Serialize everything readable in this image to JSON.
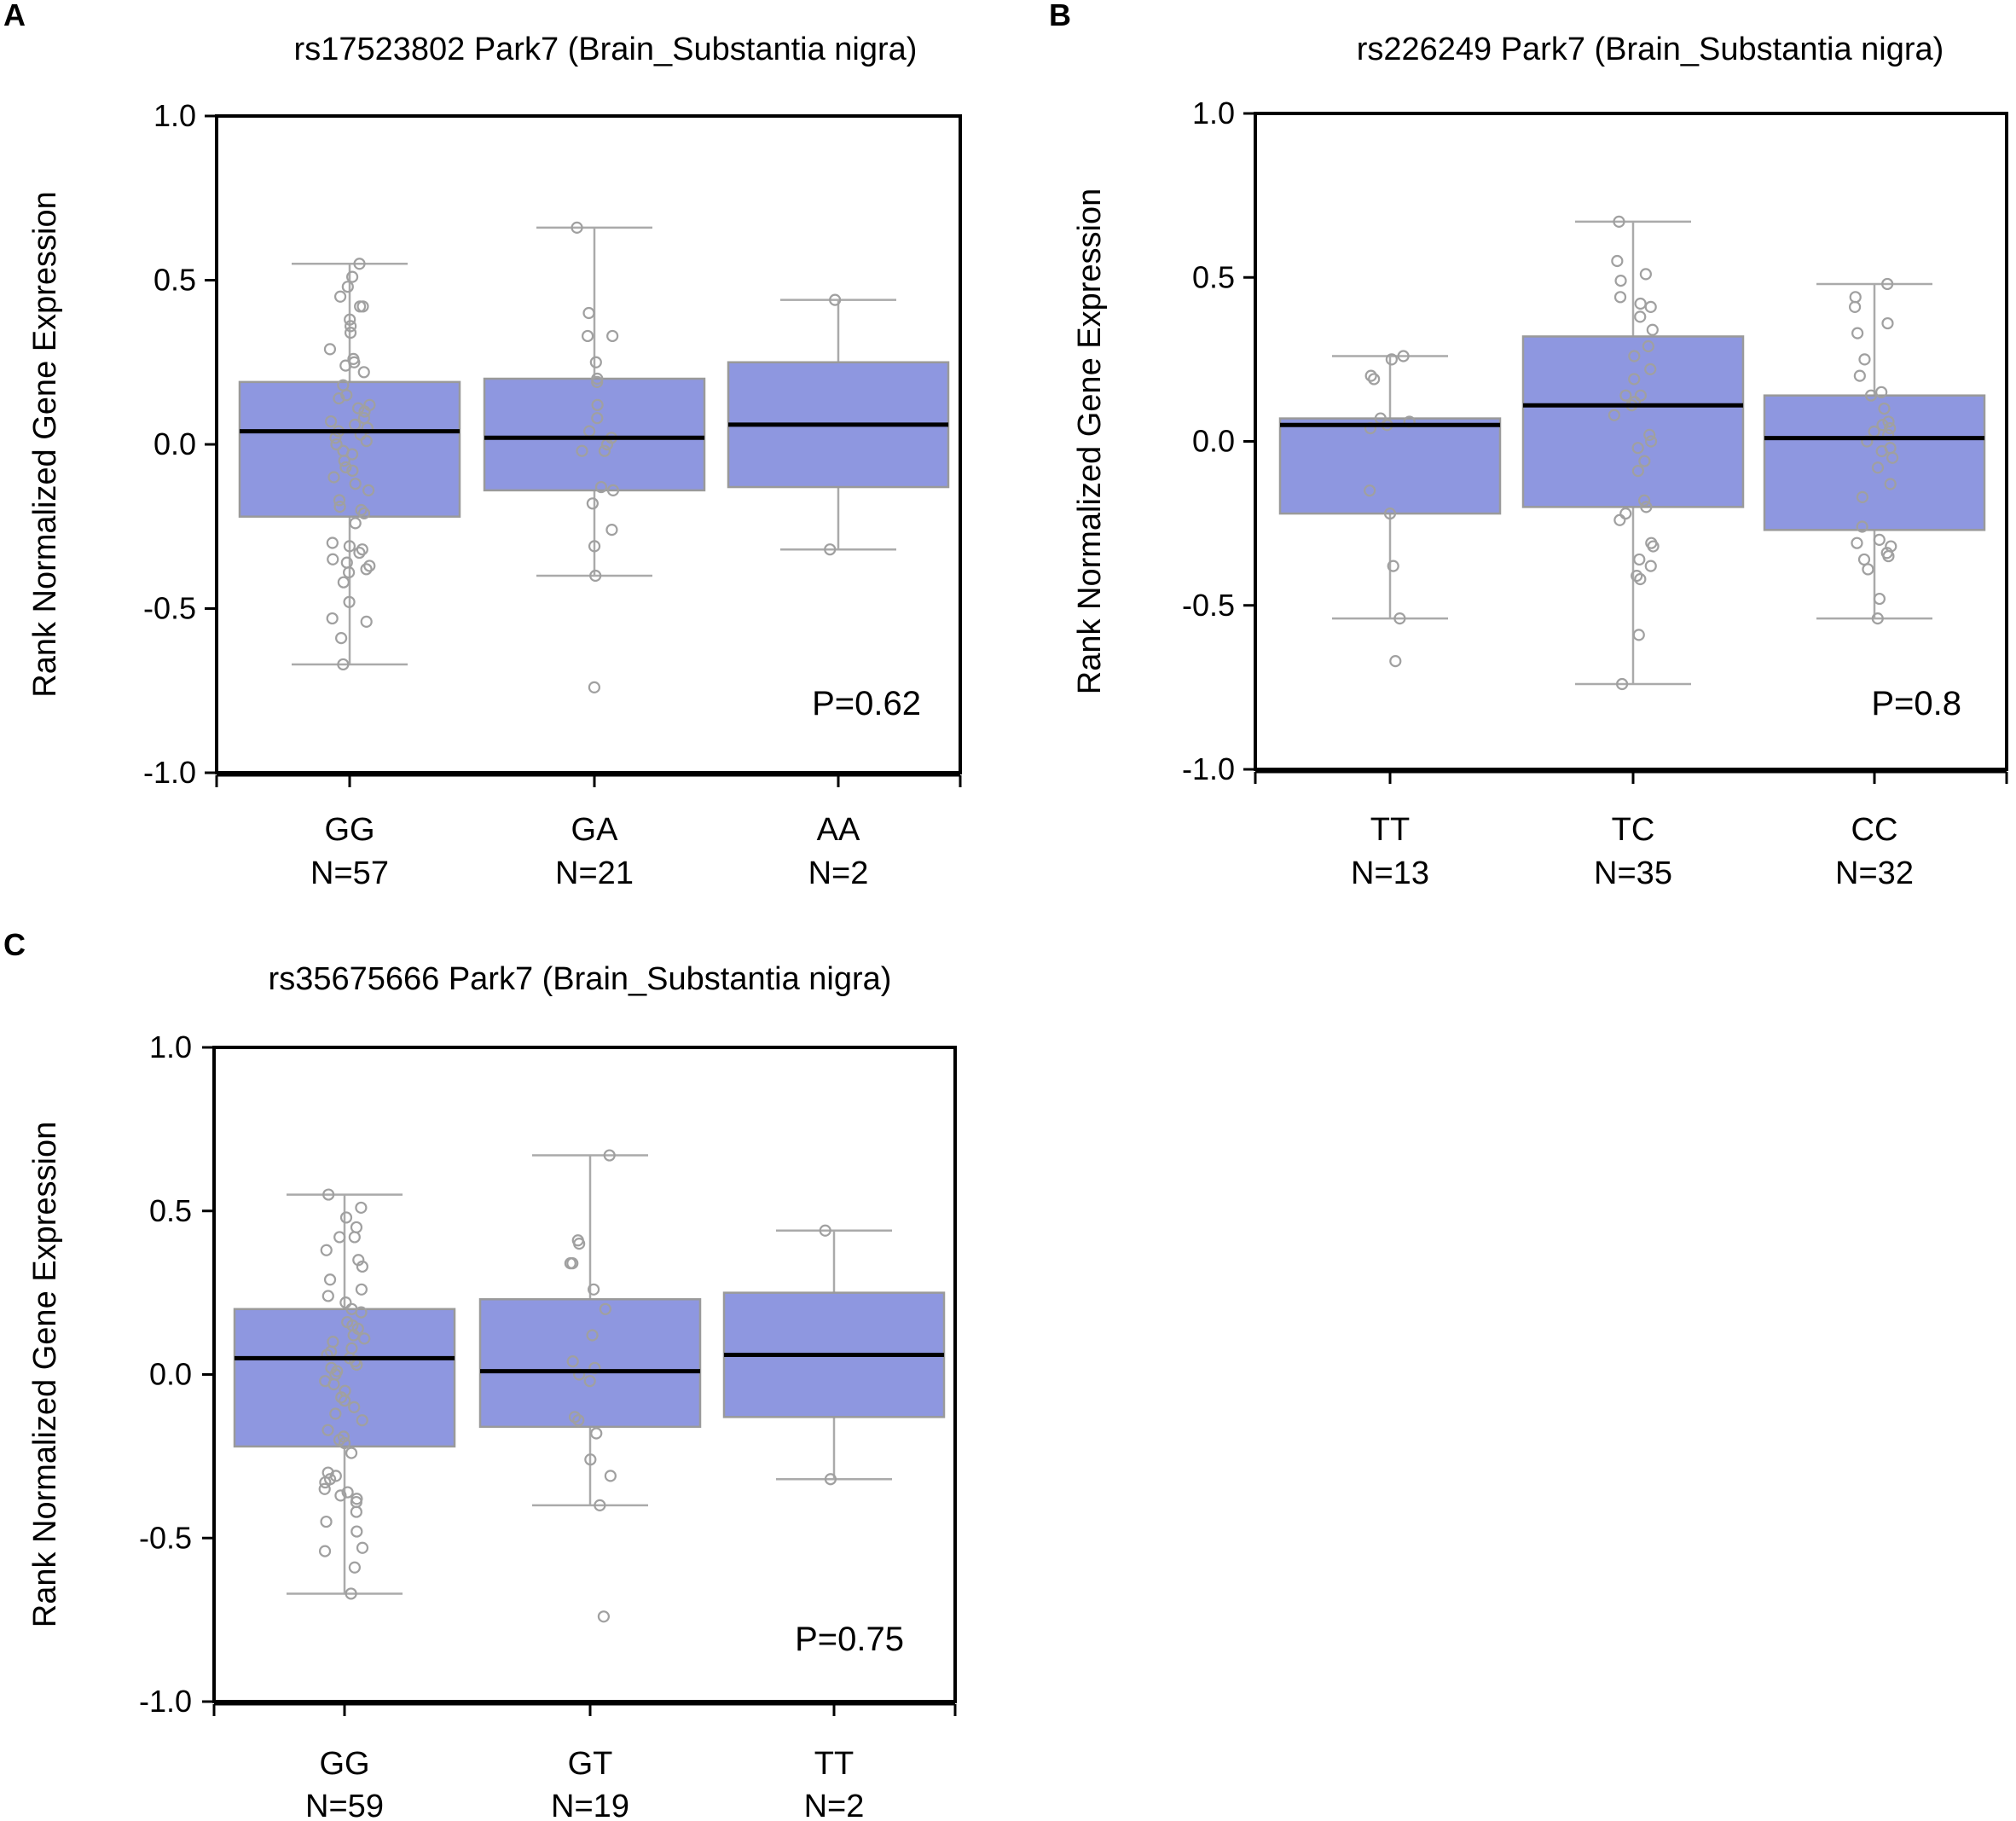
{
  "figure": {
    "panels": [
      "A",
      "B",
      "C"
    ]
  },
  "chart_data": [
    {
      "panel": "A",
      "type": "box",
      "title": "rs17523802 Park7 (Brain_Substantia nigra)",
      "xlabel": "",
      "ylabel": "Rank Normalized Gene Expression",
      "ylim": [
        -1.0,
        1.0
      ],
      "yticks": [
        "1.0",
        "0.5",
        "0.0",
        "-0.5",
        "-1.0"
      ],
      "ytick_values": [
        1.0,
        0.5,
        0.0,
        -0.5,
        -1.0
      ],
      "p_value": "P=0.62",
      "box_color": "#8e97e0",
      "categories": [
        {
          "label": "GG",
          "n": "N=57",
          "whisker_low": -0.67,
          "q1": -0.22,
          "median": 0.04,
          "q3": 0.19,
          "whisker_high": 0.55,
          "points": [
            0.55,
            0.51,
            0.48,
            0.45,
            0.42,
            0.42,
            0.38,
            0.36,
            0.34,
            0.29,
            0.26,
            0.25,
            0.24,
            0.22,
            0.18,
            0.15,
            0.14,
            0.12,
            0.11,
            0.1,
            0.08,
            0.07,
            0.06,
            0.05,
            0.04,
            0.03,
            0.02,
            0.01,
            0.0,
            -0.02,
            -0.03,
            -0.05,
            -0.07,
            -0.08,
            -0.1,
            -0.12,
            -0.14,
            -0.17,
            -0.19,
            -0.2,
            -0.21,
            -0.24,
            -0.3,
            -0.31,
            -0.32,
            -0.33,
            -0.35,
            -0.36,
            -0.37,
            -0.38,
            -0.39,
            -0.42,
            -0.48,
            -0.53,
            -0.54,
            -0.59,
            -0.67
          ]
        },
        {
          "label": "GA",
          "n": "N=21",
          "whisker_low": -0.4,
          "q1": -0.14,
          "median": 0.02,
          "q3": 0.2,
          "whisker_high": 0.66,
          "points": [
            0.66,
            0.4,
            0.33,
            0.33,
            0.25,
            0.2,
            0.19,
            0.12,
            0.08,
            0.04,
            0.02,
            0.0,
            -0.02,
            -0.02,
            -0.13,
            -0.14,
            -0.18,
            -0.26,
            -0.31,
            -0.4,
            -0.74
          ]
        },
        {
          "label": "AA",
          "n": "N=2",
          "whisker_low": -0.32,
          "q1": -0.13,
          "median": 0.06,
          "q3": 0.25,
          "whisker_high": 0.44,
          "points": [
            0.44,
            -0.32
          ]
        }
      ]
    },
    {
      "panel": "B",
      "type": "box",
      "title": "rs226249 Park7 (Brain_Substantia nigra)",
      "xlabel": "",
      "ylabel": "Rank Normalized Gene Expression",
      "ylim": [
        -1.0,
        1.0
      ],
      "yticks": [
        "1.0",
        "0.5",
        "0.0",
        "-0.5",
        "-1.0"
      ],
      "ytick_values": [
        1.0,
        0.5,
        0.0,
        -0.5,
        -1.0
      ],
      "p_value": "P=0.8",
      "box_color": "#8e97e0",
      "categories": [
        {
          "label": "TT",
          "n": "N=13",
          "whisker_low": -0.54,
          "q1": -0.22,
          "median": 0.05,
          "q3": 0.07,
          "whisker_high": 0.26,
          "points": [
            0.26,
            0.25,
            0.2,
            0.19,
            0.07,
            0.06,
            0.05,
            -0.15,
            -0.22,
            -0.38,
            -0.54,
            -0.67,
            0.04
          ]
        },
        {
          "label": "TC",
          "n": "N=35",
          "whisker_low": -0.74,
          "q1": -0.2,
          "median": 0.11,
          "q3": 0.32,
          "whisker_high": 0.67,
          "points": [
            0.67,
            0.55,
            0.51,
            0.49,
            0.44,
            0.42,
            0.41,
            0.38,
            0.34,
            0.29,
            0.26,
            0.22,
            0.19,
            0.14,
            0.14,
            0.12,
            0.11,
            0.08,
            0.02,
            0.0,
            -0.02,
            -0.06,
            -0.09,
            -0.18,
            -0.2,
            -0.22,
            -0.24,
            -0.31,
            -0.32,
            -0.36,
            -0.38,
            -0.41,
            -0.42,
            -0.59,
            -0.74
          ]
        },
        {
          "label": "CC",
          "n": "N=32",
          "whisker_low": -0.54,
          "q1": -0.27,
          "median": 0.01,
          "q3": 0.14,
          "whisker_high": 0.48,
          "points": [
            0.48,
            0.44,
            0.41,
            0.36,
            0.33,
            0.25,
            0.2,
            0.15,
            0.14,
            0.1,
            0.06,
            0.05,
            0.04,
            0.03,
            0.02,
            0.0,
            -0.02,
            -0.03,
            -0.05,
            -0.08,
            -0.13,
            -0.17,
            -0.26,
            -0.3,
            -0.31,
            -0.32,
            -0.34,
            -0.35,
            -0.36,
            -0.39,
            -0.48,
            -0.54
          ]
        }
      ]
    },
    {
      "panel": "C",
      "type": "box",
      "title": "rs35675666 Park7 (Brain_Substantia nigra)",
      "xlabel": "",
      "ylabel": "Rank Normalized Gene Expression",
      "ylim": [
        -1.0,
        1.0
      ],
      "yticks": [
        "1.0",
        "0.5",
        "0.0",
        "-0.5",
        "-1.0"
      ],
      "ytick_values": [
        1.0,
        0.5,
        0.0,
        -0.5,
        -1.0
      ],
      "p_value": "P=0.75",
      "box_color": "#8e97e0",
      "categories": [
        {
          "label": "GG",
          "n": "N=59",
          "whisker_low": -0.67,
          "q1": -0.22,
          "median": 0.05,
          "q3": 0.2,
          "whisker_high": 0.55,
          "points": [
            0.55,
            0.51,
            0.48,
            0.45,
            0.42,
            0.42,
            0.38,
            0.35,
            0.33,
            0.29,
            0.26,
            0.24,
            0.22,
            0.19,
            0.16,
            0.15,
            0.14,
            0.12,
            0.11,
            0.1,
            0.08,
            0.07,
            0.06,
            0.05,
            0.04,
            0.03,
            0.02,
            0.01,
            0.0,
            -0.02,
            -0.03,
            -0.05,
            -0.07,
            -0.08,
            -0.1,
            -0.12,
            -0.14,
            -0.17,
            -0.19,
            -0.2,
            -0.21,
            -0.24,
            -0.3,
            -0.31,
            -0.32,
            -0.33,
            -0.35,
            -0.36,
            -0.37,
            -0.38,
            -0.39,
            -0.42,
            -0.45,
            -0.48,
            -0.53,
            -0.54,
            -0.59,
            -0.67,
            0.2
          ]
        },
        {
          "label": "GT",
          "n": "N=19",
          "whisker_low": -0.4,
          "q1": -0.16,
          "median": 0.01,
          "q3": 0.23,
          "whisker_high": 0.67,
          "points": [
            0.67,
            0.41,
            0.4,
            0.34,
            0.34,
            0.26,
            0.2,
            0.12,
            0.04,
            0.02,
            0.0,
            -0.02,
            -0.13,
            -0.14,
            -0.18,
            -0.26,
            -0.31,
            -0.4,
            -0.74
          ]
        },
        {
          "label": "TT",
          "n": "N=2",
          "whisker_low": -0.32,
          "q1": -0.13,
          "median": 0.06,
          "q3": 0.25,
          "whisker_high": 0.44,
          "points": [
            0.44,
            -0.32
          ]
        }
      ]
    }
  ]
}
